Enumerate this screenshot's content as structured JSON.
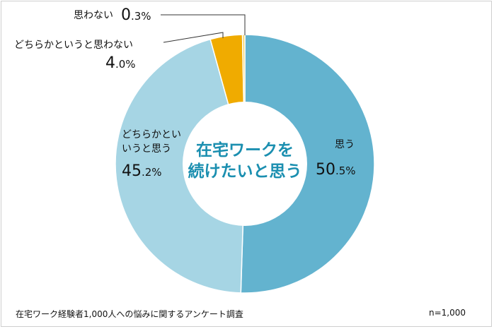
{
  "chart_data": {
    "type": "pie",
    "title": "在宅ワークを続けたいと思う",
    "categories": [
      "思う",
      "どちらかというと思う",
      "どちらかというと思わない",
      "思わない"
    ],
    "values": [
      50.5,
      45.2,
      4.0,
      0.3
    ],
    "colors": [
      "#63b3cf",
      "#a6d5e4",
      "#f0ab00",
      "#f6d36b"
    ],
    "labels": {
      "s0": {
        "name": "思う",
        "num": "50",
        "dec": ".5%"
      },
      "s1": {
        "name1": "どちらかとい",
        "name2": "いうと思う",
        "num": "45",
        "dec": ".2%"
      },
      "s2": {
        "name": "どちらかというと思わない",
        "num": "4",
        "dec": ".0%"
      },
      "s3": {
        "name": "思わない",
        "num": "0",
        "dec": ".3%"
      }
    },
    "center_title_line1": "在宅ワークを",
    "center_title_line2": "続けたいと思う"
  },
  "footer": {
    "source": "在宅ワーク経験者1,000人への悩みに関するアンケート調査",
    "n": "n=1,000"
  }
}
